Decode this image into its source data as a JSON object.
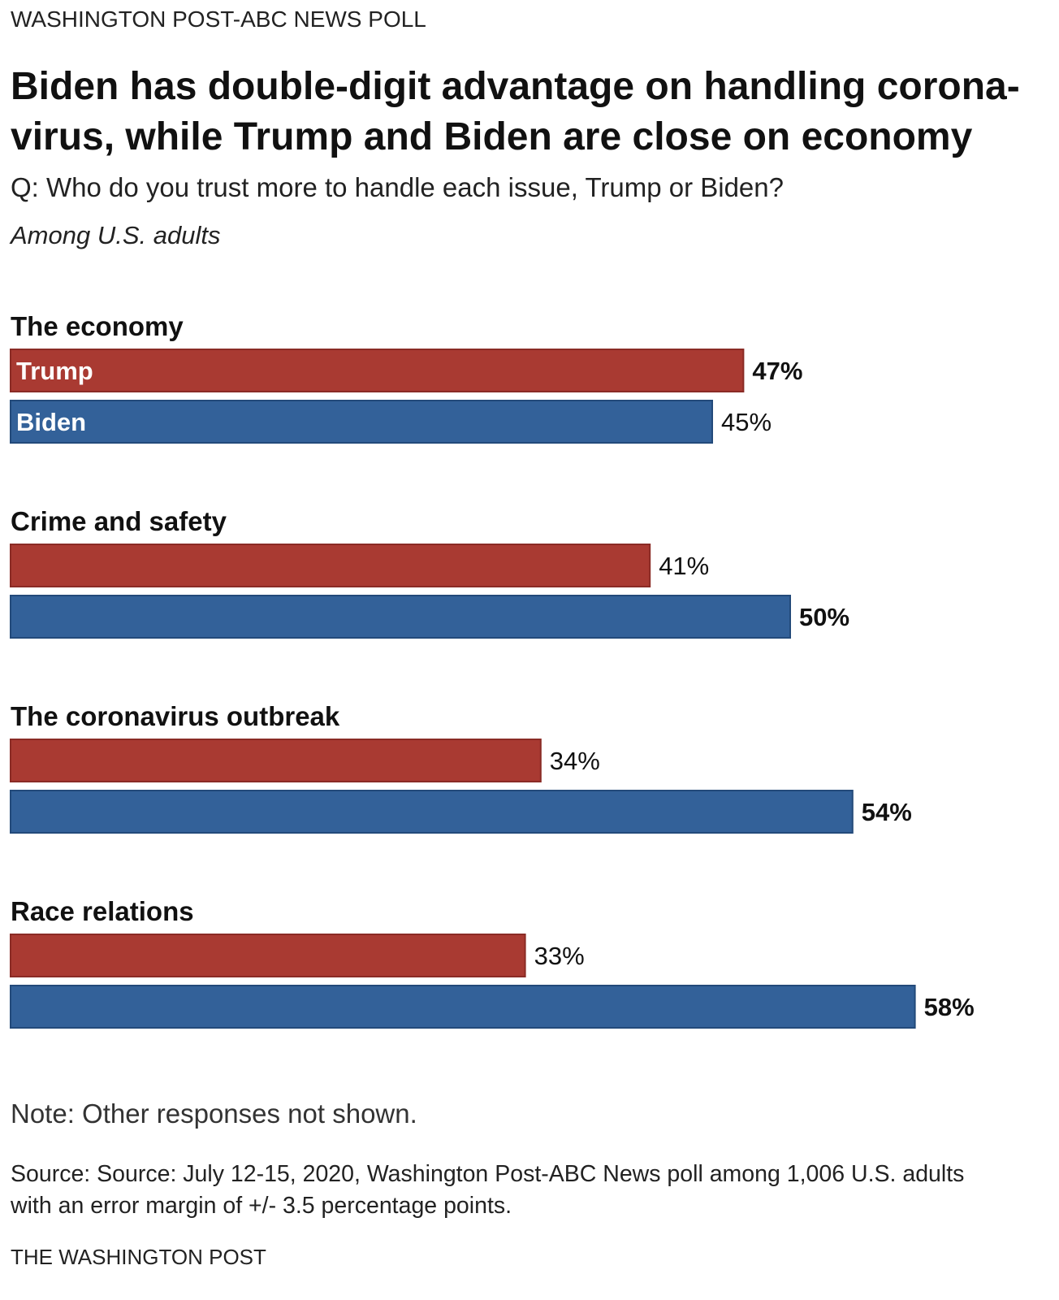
{
  "kicker": "WASHINGTON POST-ABC NEWS POLL",
  "title_line1": "Biden has double-digit advantage on handling corona-",
  "title_line2": "virus, while Trump and Biden are close on economy",
  "subtitle": "Q: Who do you trust more to handle each issue, Trump or Biden?",
  "among": "Among U.S. adults",
  "note": "Note: Other responses not shown.",
  "source_line1": "Source: Source: July 12-15, 2020, Washington Post-ABC News poll among 1,006 U.S. adults",
  "source_line2": "with an error margin of +/- 3.5 percentage points.",
  "credit": "THE WASHINGTON POST",
  "colors": {
    "trump": "#a93a32",
    "biden": "#336199",
    "trump_border": "#8a2b25",
    "biden_border": "#234a7a"
  },
  "chart_data": {
    "type": "bar",
    "orientation": "horizontal",
    "grouping": "grouped",
    "unit": "%",
    "xlim": [
      0,
      100
    ],
    "categories": [
      "The economy",
      "Crime and safety",
      "The coronavirus outbreak",
      "Race relations"
    ],
    "series": [
      {
        "name": "Trump",
        "values": [
          47,
          41,
          34,
          33
        ],
        "labels": [
          "47%",
          "41%",
          "34%",
          "33%"
        ],
        "bold": [
          true,
          false,
          false,
          false
        ]
      },
      {
        "name": "Biden",
        "values": [
          45,
          50,
          54,
          58
        ],
        "labels": [
          "45%",
          "50%",
          "54%",
          "58%"
        ],
        "bold": [
          false,
          true,
          true,
          true
        ]
      }
    ]
  }
}
